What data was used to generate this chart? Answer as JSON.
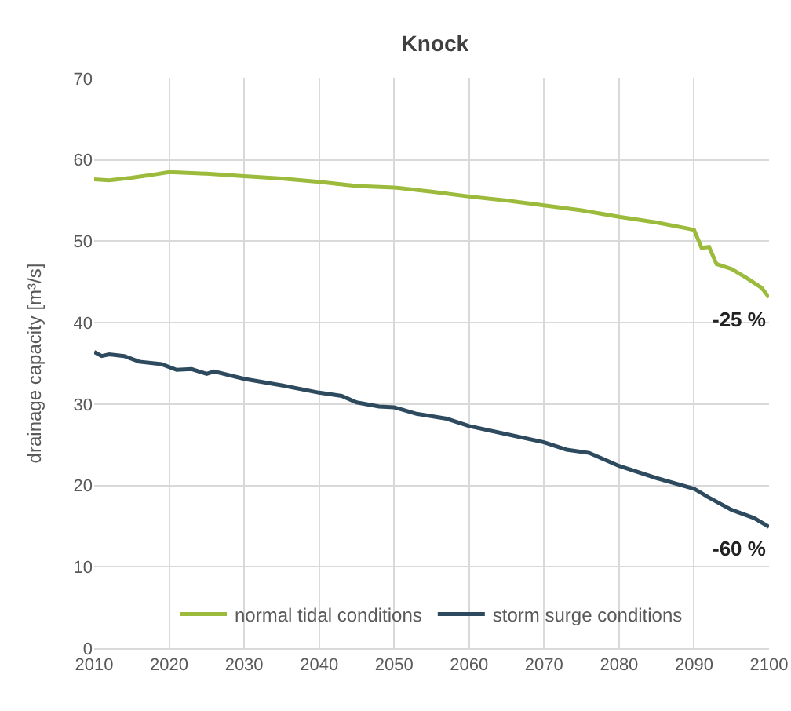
{
  "chart_data": {
    "type": "line",
    "title": "Knock",
    "ylabel": "drainage capacity [m³/s]",
    "xlim": [
      2010,
      2100
    ],
    "xticks": [
      2010,
      2020,
      2030,
      2040,
      2050,
      2060,
      2070,
      2080,
      2090,
      2100
    ],
    "ylim": [
      0,
      70
    ],
    "yticks": [
      0,
      10,
      20,
      30,
      40,
      50,
      60,
      70
    ],
    "grid": true,
    "legend": "bottom",
    "marker": "none",
    "line_style": "solid",
    "series": [
      {
        "name": "normal tidal conditions",
        "color": "#9cbb3c",
        "x": [
          2010,
          2012,
          2015,
          2018,
          2020,
          2025,
          2030,
          2035,
          2040,
          2045,
          2050,
          2055,
          2060,
          2065,
          2070,
          2075,
          2080,
          2085,
          2089,
          2090,
          2091,
          2092,
          2093,
          2095,
          2097,
          2099,
          2100
        ],
        "values": [
          57.6,
          57.5,
          57.8,
          58.2,
          58.5,
          58.3,
          58.0,
          57.7,
          57.3,
          56.8,
          56.6,
          56.1,
          55.5,
          55.0,
          54.4,
          53.8,
          53.0,
          52.3,
          51.6,
          51.4,
          49.2,
          49.3,
          47.2,
          46.6,
          45.5,
          44.3,
          43.1
        ]
      },
      {
        "name": "storm surge conditions",
        "color": "#2d4a5e",
        "x": [
          2010,
          2011,
          2012,
          2014,
          2016,
          2019,
          2021,
          2023,
          2025,
          2026,
          2030,
          2035,
          2040,
          2043,
          2045,
          2048,
          2050,
          2053,
          2057,
          2060,
          2065,
          2070,
          2073,
          2076,
          2080,
          2085,
          2090,
          2092,
          2095,
          2098,
          2100
        ],
        "values": [
          36.4,
          35.9,
          36.1,
          35.9,
          35.2,
          34.9,
          34.2,
          34.3,
          33.7,
          34.0,
          33.1,
          32.3,
          31.4,
          31.0,
          30.2,
          29.7,
          29.6,
          28.8,
          28.2,
          27.3,
          26.3,
          25.3,
          24.4,
          24.0,
          22.4,
          20.9,
          19.6,
          18.5,
          17.0,
          16.0,
          14.9
        ]
      }
    ],
    "annotations": [
      {
        "text": "-25 %",
        "x": 2100,
        "y": 43.1
      },
      {
        "text": "-60 %",
        "x": 2100,
        "y": 14.9
      }
    ]
  }
}
